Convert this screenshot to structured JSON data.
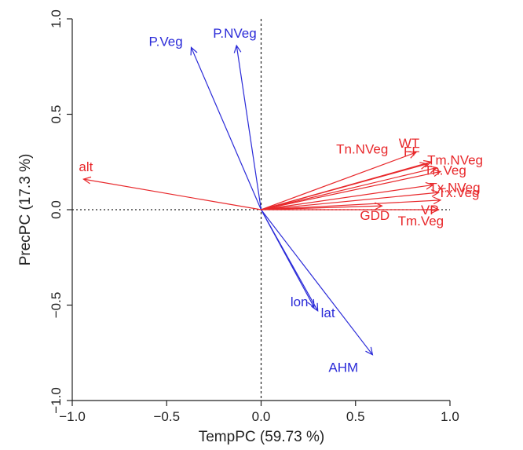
{
  "chart_data": {
    "type": "biplot",
    "title": "",
    "xlabel": "TempPC (59.73 %)",
    "ylabel": "PrecPC (17.3 %)",
    "xlim": [
      -1.0,
      1.0
    ],
    "ylim": [
      -1.0,
      1.0
    ],
    "xticks": [
      -1.0,
      -0.5,
      0.0,
      0.5,
      1.0
    ],
    "yticks": [
      -1.0,
      -0.5,
      0.0,
      0.5,
      1.0
    ],
    "xtick_labels": [
      "−1.0",
      "−0.5",
      "0.0",
      "0.5",
      "1.0"
    ],
    "ytick_labels": [
      "−1.0",
      "−0.5",
      "0.0",
      "0.5",
      "1.0"
    ],
    "reference_lines": "dotted lines at x = 0 and y = 0",
    "grid": false,
    "colors": {
      "temperature": "#e8282b",
      "precipitation": "#2a2ad8",
      "axis": "#222222"
    },
    "vectors": [
      {
        "name": "P.Veg",
        "x": -0.37,
        "y": 0.85,
        "group": "precipitation"
      },
      {
        "name": "P.NVeg",
        "x": -0.13,
        "y": 0.86,
        "group": "precipitation"
      },
      {
        "name": "lon",
        "x": 0.28,
        "y": -0.51,
        "group": "precipitation"
      },
      {
        "name": "lat",
        "x": 0.3,
        "y": -0.53,
        "group": "precipitation"
      },
      {
        "name": "AHM",
        "x": 0.59,
        "y": -0.76,
        "group": "precipitation"
      },
      {
        "name": "alt",
        "x": -0.94,
        "y": 0.16,
        "group": "temperature"
      },
      {
        "name": "WT",
        "x": 0.82,
        "y": 0.3,
        "group": "temperature"
      },
      {
        "name": "Tn.NVeg",
        "x": 0.88,
        "y": 0.24,
        "group": "temperature"
      },
      {
        "name": "FF",
        "x": 0.9,
        "y": 0.25,
        "group": "temperature"
      },
      {
        "name": "Tm.NVeg",
        "x": 0.93,
        "y": 0.22,
        "group": "temperature"
      },
      {
        "name": "Tn.Veg",
        "x": 0.95,
        "y": 0.2,
        "group": "temperature"
      },
      {
        "name": "Tx.NVeg",
        "x": 0.91,
        "y": 0.13,
        "group": "temperature"
      },
      {
        "name": "Tx.Veg",
        "x": 0.94,
        "y": 0.09,
        "group": "temperature"
      },
      {
        "name": "VP",
        "x": 0.95,
        "y": 0.05,
        "group": "temperature"
      },
      {
        "name": "GDD",
        "x": 0.64,
        "y": 0.02,
        "group": "temperature"
      },
      {
        "name": "Tm.Veg",
        "x": 0.94,
        "y": 0.0,
        "group": "temperature"
      }
    ]
  }
}
